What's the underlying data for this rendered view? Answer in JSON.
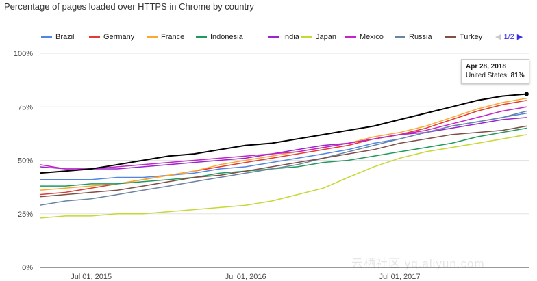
{
  "chart_data": {
    "type": "line",
    "title": "Percentage of pages loaded over HTTPS in Chrome by country",
    "xlabel": "",
    "ylabel": "",
    "ylim": [
      0,
      100
    ],
    "y_ticks": [
      "0%",
      "25%",
      "50%",
      "75%",
      "100%"
    ],
    "y_tick_values": [
      0,
      25,
      50,
      75,
      100
    ],
    "x_ticks": [
      "Jul 01, 2015",
      "Jul 01, 2016",
      "Jul 01, 2017"
    ],
    "x_tick_values": [
      "2015-07-01",
      "2016-07-01",
      "2017-07-01"
    ],
    "xlim": [
      "2015-03-01",
      "2018-05-03"
    ],
    "grid": true,
    "legend_position": "top",
    "legend_pager": "1/2",
    "x": [
      "2015-03-01",
      "2015-05-01",
      "2015-07-01",
      "2015-09-01",
      "2015-11-01",
      "2016-01-01",
      "2016-03-01",
      "2016-05-01",
      "2016-07-01",
      "2016-09-01",
      "2016-11-01",
      "2017-01-01",
      "2017-03-01",
      "2017-05-01",
      "2017-07-01",
      "2017-09-01",
      "2017-11-01",
      "2018-01-01",
      "2018-03-01",
      "2018-04-28"
    ],
    "series": [
      {
        "name": "Brazil",
        "color": "#4f86e4",
        "values": [
          41,
          41,
          41,
          42,
          42,
          43,
          44,
          46,
          47,
          49,
          51,
          53,
          55,
          58,
          60,
          63,
          66,
          68,
          70,
          72
        ]
      },
      {
        "name": "Germany",
        "color": "#e53935",
        "values": [
          34,
          35,
          37,
          39,
          41,
          43,
          45,
          47,
          49,
          51,
          53,
          55,
          57,
          60,
          62,
          65,
          69,
          73,
          76,
          78
        ]
      },
      {
        "name": "France",
        "color": "#fba92c",
        "values": [
          36,
          37,
          38,
          39,
          41,
          43,
          45,
          48,
          50,
          52,
          54,
          56,
          58,
          61,
          63,
          66,
          70,
          74,
          77,
          79
        ]
      },
      {
        "name": "Indonesia",
        "color": "#1f9a5d",
        "values": [
          38,
          38,
          39,
          39,
          40,
          41,
          42,
          44,
          45,
          46,
          47,
          49,
          50,
          52,
          54,
          56,
          58,
          61,
          63,
          65
        ]
      },
      {
        "name": "India",
        "color": "#9a25cc",
        "values": [
          47,
          46,
          46,
          46,
          47,
          48,
          49,
          50,
          51,
          53,
          55,
          57,
          58,
          60,
          62,
          63,
          65,
          67,
          69,
          70
        ]
      },
      {
        "name": "Japan",
        "color": "#c6d832",
        "values": [
          23,
          24,
          24,
          25,
          25,
          26,
          27,
          28,
          29,
          31,
          34,
          37,
          42,
          47,
          51,
          54,
          56,
          58,
          60,
          62
        ]
      },
      {
        "name": "Mexico",
        "color": "#c423c9",
        "values": [
          48,
          46,
          46,
          47,
          48,
          49,
          50,
          51,
          52,
          53,
          54,
          56,
          58,
          60,
          62,
          64,
          67,
          70,
          73,
          75
        ]
      },
      {
        "name": "Russia",
        "color": "#6b84a3",
        "values": [
          29,
          31,
          32,
          34,
          36,
          38,
          40,
          42,
          44,
          46,
          48,
          51,
          54,
          57,
          60,
          63,
          66,
          68,
          70,
          73
        ]
      },
      {
        "name": "Turkey",
        "color": "#7e4f45",
        "values": [
          33,
          34,
          35,
          36,
          38,
          40,
          42,
          43,
          45,
          47,
          49,
          51,
          53,
          55,
          58,
          60,
          62,
          63,
          64,
          66
        ]
      },
      {
        "name": "United States",
        "color": "#000000",
        "values": [
          44,
          45,
          46,
          48,
          50,
          52,
          53,
          55,
          57,
          58,
          60,
          62,
          64,
          66,
          69,
          72,
          75,
          78,
          80,
          81
        ]
      }
    ],
    "tooltip": {
      "date": "Apr 28, 2018",
      "label": "United States:",
      "value": "81%"
    }
  },
  "watermark": "云栖社区 yq.aliyun.com"
}
